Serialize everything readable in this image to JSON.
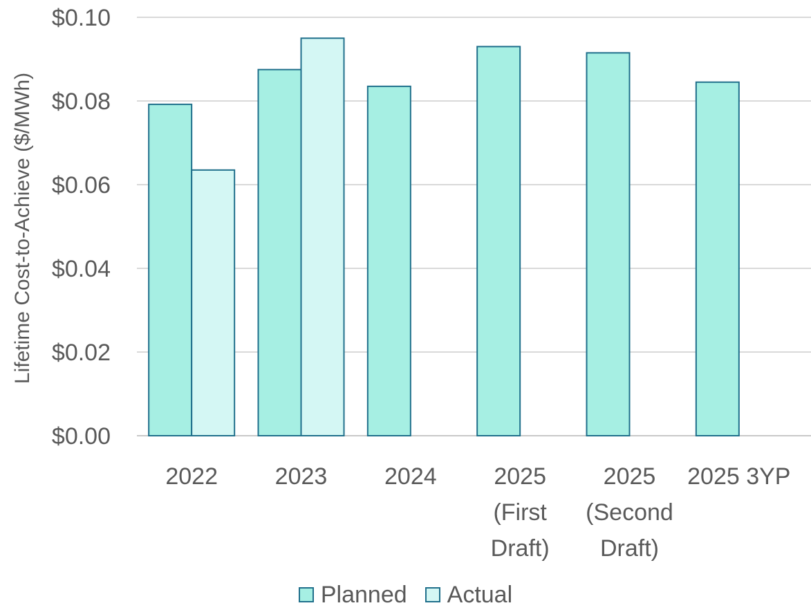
{
  "chart_data": {
    "type": "bar",
    "ylabel": "Lifetime Cost-to-Achieve ($/MWh)",
    "ylim": [
      0,
      0.1
    ],
    "yticks": [
      "$0.00",
      "$0.02",
      "$0.04",
      "$0.06",
      "$0.08",
      "$0.10"
    ],
    "grid": true,
    "legend_position": "bottom",
    "categories": [
      [
        "2022"
      ],
      [
        "2023"
      ],
      [
        "2024"
      ],
      [
        "2025",
        "(First",
        "Draft)"
      ],
      [
        "2025",
        "(Second",
        "Draft)"
      ],
      [
        "2025 3YP"
      ]
    ],
    "series": [
      {
        "name": "Planned",
        "color": "#a6efe3",
        "values": [
          0.0792,
          0.0875,
          0.0835,
          0.093,
          0.0915,
          0.0845
        ]
      },
      {
        "name": "Actual",
        "color": "#d4f7f4",
        "values": [
          0.0635,
          0.095,
          null,
          null,
          null,
          null
        ]
      }
    ],
    "bar_edge_color": "#1f6f8b"
  }
}
